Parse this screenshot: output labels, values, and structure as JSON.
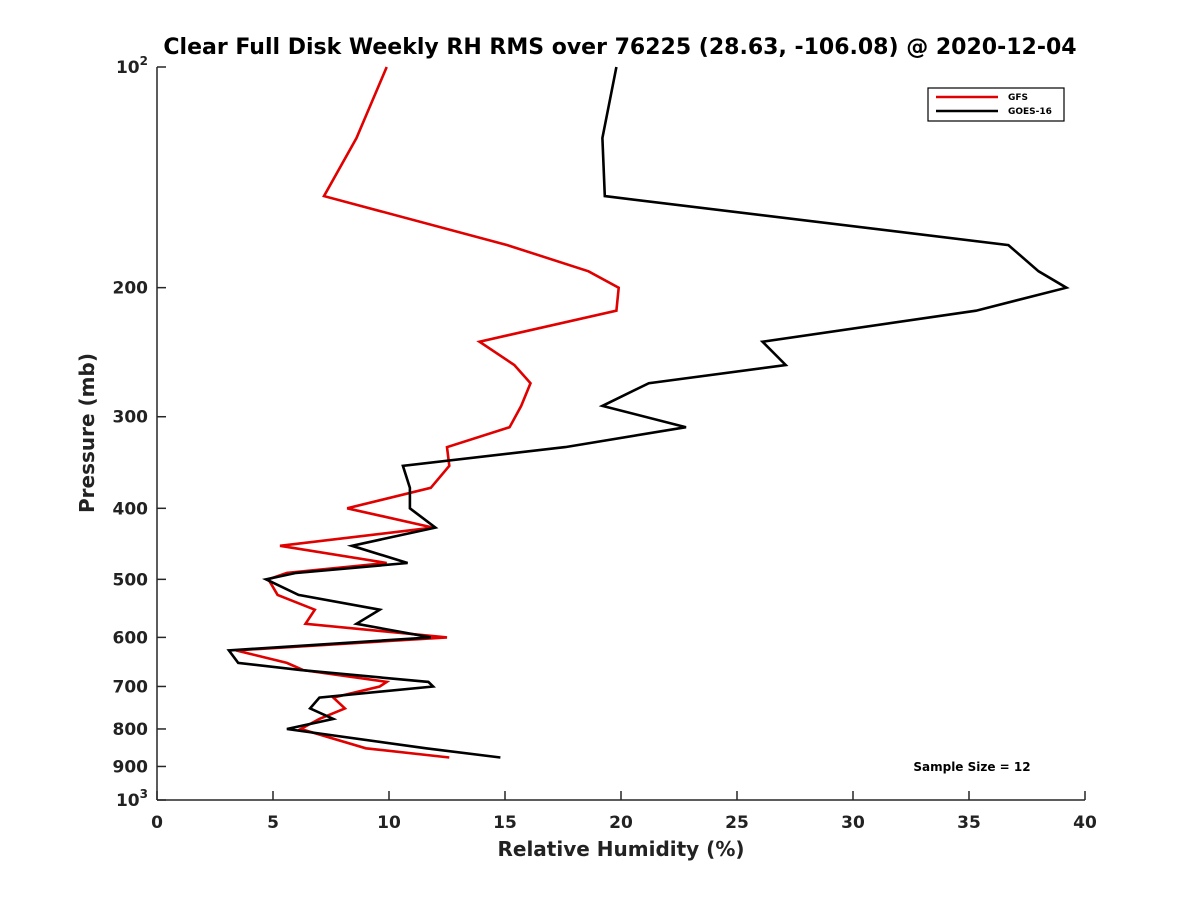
{
  "chart_data": {
    "type": "line",
    "title": "Clear Full Disk Weekly RH RMS over 76225 (28.63, -106.08) @ 2020-12-04",
    "xlabel": "Relative Humidity (%)",
    "ylabel": "Pressure (mb)",
    "xlim": [
      0,
      40
    ],
    "ylim": [
      100,
      1000
    ],
    "yscale": "log",
    "y_reversed": true,
    "grid": false,
    "legend_position": "top-right",
    "x_ticks": [
      0,
      5,
      10,
      15,
      20,
      25,
      30,
      35,
      40
    ],
    "y_ticks": [
      100,
      200,
      300,
      400,
      500,
      600,
      700,
      800,
      900,
      1000
    ],
    "y_tick_labels": [
      {
        "value": 100,
        "base": "10",
        "exp": "2"
      },
      {
        "value": 200,
        "text": "200"
      },
      {
        "value": 300,
        "text": "300"
      },
      {
        "value": 400,
        "text": "400"
      },
      {
        "value": 500,
        "text": "500"
      },
      {
        "value": 600,
        "text": "600"
      },
      {
        "value": 700,
        "text": "700"
      },
      {
        "value": 800,
        "text": "800"
      },
      {
        "value": 900,
        "text": "900"
      },
      {
        "value": 1000,
        "base": "10",
        "exp": "3"
      }
    ],
    "series": [
      {
        "name": "GFS",
        "color": "#e00000",
        "points": [
          [
            9.9,
            100
          ],
          [
            8.6,
            125
          ],
          [
            7.2,
            150
          ],
          [
            15.1,
            175
          ],
          [
            18.6,
            190
          ],
          [
            19.9,
            200
          ],
          [
            19.8,
            215
          ],
          [
            13.9,
            237
          ],
          [
            15.4,
            255
          ],
          [
            16.1,
            270
          ],
          [
            15.7,
            290
          ],
          [
            15.2,
            310
          ],
          [
            12.5,
            330
          ],
          [
            12.6,
            350
          ],
          [
            11.8,
            375
          ],
          [
            8.2,
            400
          ],
          [
            11.9,
            425
          ],
          [
            5.3,
            450
          ],
          [
            9.9,
            475
          ],
          [
            5.6,
            490
          ],
          [
            4.8,
            500
          ],
          [
            5.2,
            525
          ],
          [
            6.8,
            550
          ],
          [
            6.4,
            575
          ],
          [
            12.5,
            600
          ],
          [
            3.4,
            625
          ],
          [
            5.6,
            650
          ],
          [
            6.3,
            665
          ],
          [
            9.9,
            690
          ],
          [
            9.6,
            700
          ],
          [
            7.6,
            725
          ],
          [
            8.1,
            750
          ],
          [
            7.0,
            775
          ],
          [
            6.2,
            800
          ],
          [
            9.0,
            850
          ],
          [
            12.6,
            875
          ]
        ]
      },
      {
        "name": "GOES-16",
        "color": "#000000",
        "points": [
          [
            19.8,
            100
          ],
          [
            19.2,
            125
          ],
          [
            19.3,
            150
          ],
          [
            36.7,
            175
          ],
          [
            38.0,
            190
          ],
          [
            39.2,
            200
          ],
          [
            35.3,
            215
          ],
          [
            26.1,
            237
          ],
          [
            27.1,
            255
          ],
          [
            21.2,
            270
          ],
          [
            19.2,
            290
          ],
          [
            22.8,
            310
          ],
          [
            17.6,
            330
          ],
          [
            10.6,
            350
          ],
          [
            10.9,
            375
          ],
          [
            10.9,
            400
          ],
          [
            12.0,
            425
          ],
          [
            8.4,
            450
          ],
          [
            10.8,
            475
          ],
          [
            6.0,
            490
          ],
          [
            4.7,
            500
          ],
          [
            6.1,
            525
          ],
          [
            9.6,
            550
          ],
          [
            8.6,
            575
          ],
          [
            11.8,
            600
          ],
          [
            3.1,
            625
          ],
          [
            3.5,
            650
          ],
          [
            6.2,
            665
          ],
          [
            11.7,
            690
          ],
          [
            11.9,
            700
          ],
          [
            7.0,
            725
          ],
          [
            6.6,
            750
          ],
          [
            7.6,
            775
          ],
          [
            5.6,
            800
          ],
          [
            11.6,
            850
          ],
          [
            14.8,
            875
          ]
        ]
      }
    ],
    "annotations": [
      "Sample Size = 12"
    ]
  }
}
